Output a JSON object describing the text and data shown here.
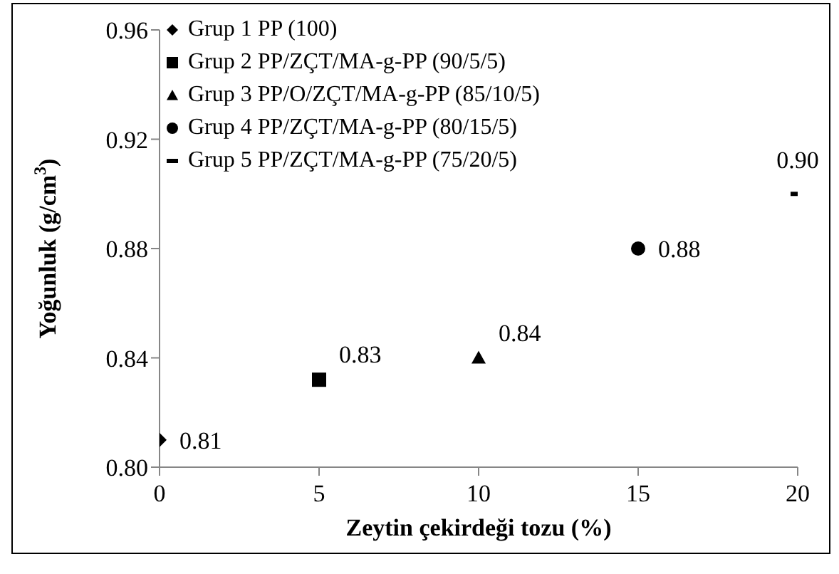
{
  "chart_data": {
    "type": "scatter",
    "xlabel": "Zeytin çekirdeği tozu (%)",
    "ylabel": "Yoğunluk (g/cm$^{3}$)",
    "xlim": [
      0,
      20
    ],
    "xticks": [
      0,
      5,
      10,
      15,
      20
    ],
    "ylim": [
      0.8,
      0.96
    ],
    "yticks": [
      {
        "value": 0.8,
        "label": "0.80"
      },
      0.84,
      0.88,
      0.92,
      0.96
    ],
    "grid": false,
    "legend": "top left",
    "series": [
      {
        "name": "Grup 1 PP (100)",
        "color": "#000000",
        "marker": "diamond",
        "x": [
          0
        ],
        "values": [
          0.81
        ],
        "value_labels": [
          "0.81"
        ]
      },
      {
        "name": "Grup 2 PP/ZÇT/MA-g-PP (90/5/5)",
        "color": "#000000",
        "marker": "square",
        "x": [
          5
        ],
        "values": [
          0.832
        ],
        "value_labels": [
          "0.83"
        ]
      },
      {
        "name": "Grup 3 PP/O/ZÇT/MA-g-PP (85/10/5)",
        "color": "#000000",
        "marker": "triangle",
        "x": [
          10
        ],
        "values": [
          0.84
        ],
        "value_labels": [
          "0.84"
        ]
      },
      {
        "name": "Grup 4 PP/ZÇT/MA-g-PP (80/15/5)",
        "color": "#000000",
        "marker": "circle",
        "x": [
          15
        ],
        "values": [
          0.88
        ],
        "value_labels": [
          "0.88"
        ]
      },
      {
        "name": "Grup 5 PP/ZÇT/MA-g-PP (75/20/5)",
        "color": "#000000",
        "x": [
          20
        ],
        "values": [
          0.9
        ],
        "value_labels": [
          "0.90"
        ]
      }
    ]
  }
}
